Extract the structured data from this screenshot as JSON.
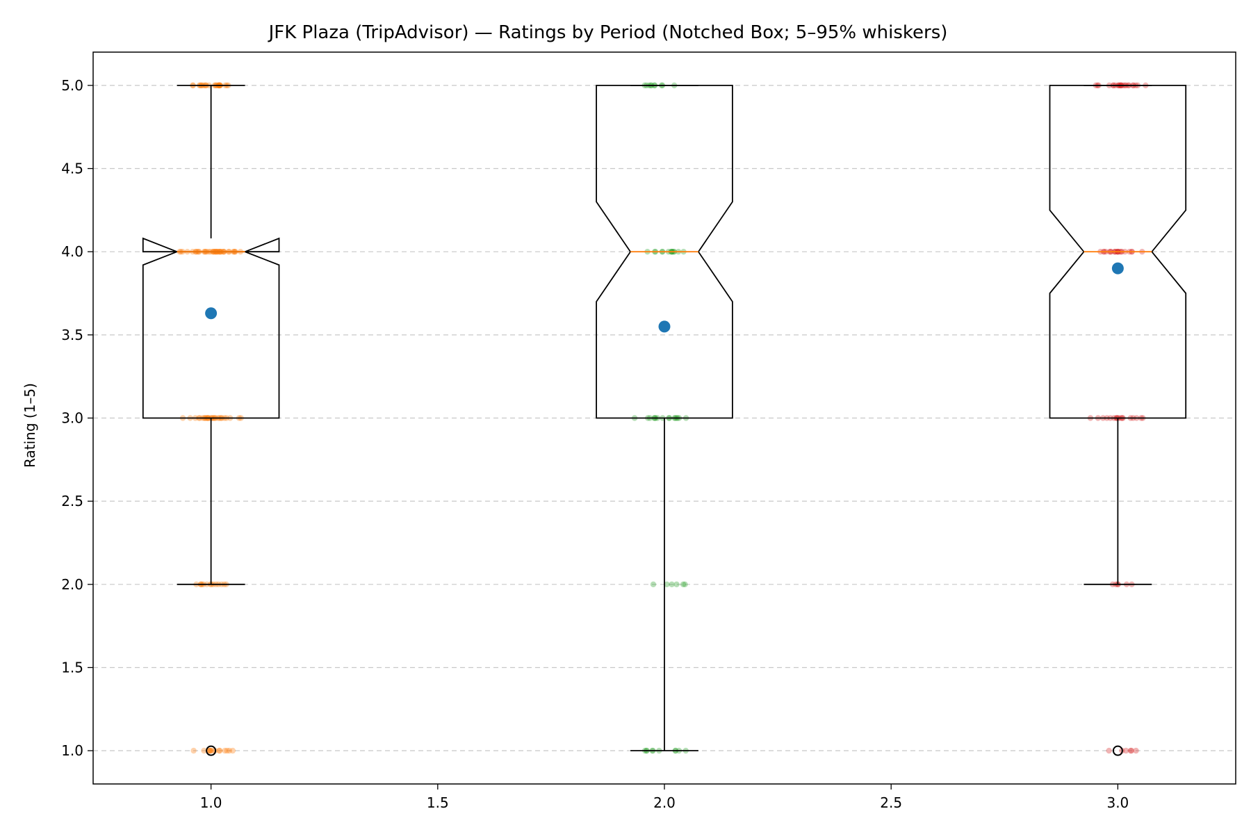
{
  "chart_data": {
    "type": "box",
    "title": "JFK Plaza (TripAdvisor) — Ratings by Period (Notched Box; 5–95% whiskers)",
    "xlabel": "",
    "ylabel": "Rating (1–5)",
    "xlim": [
      0.74,
      3.26
    ],
    "ylim": [
      0.8,
      5.2
    ],
    "x_ticks": [
      "1.0",
      "1.5",
      "2.0",
      "2.5",
      "3.0"
    ],
    "y_ticks": [
      "1.0",
      "1.5",
      "2.0",
      "2.5",
      "3.0",
      "3.5",
      "4.0",
      "4.5",
      "5.0"
    ],
    "grid": "y-dashed",
    "series": [
      {
        "position": 1.0,
        "q1": 3.0,
        "median": 4.0,
        "q3": 4.0,
        "notch_low": 3.92,
        "notch_high": 4.08,
        "whisker_low": 2.0,
        "whisker_high": 5.0,
        "mean": 3.63,
        "outliers": [
          1.0
        ],
        "point_color": "#ff7f0e",
        "points": {
          "1": 14,
          "2": 14,
          "3": 28,
          "4": 40,
          "5": 26
        }
      },
      {
        "position": 2.0,
        "q1": 3.0,
        "median": 4.0,
        "q3": 5.0,
        "notch_low": 3.7,
        "notch_high": 4.3,
        "whisker_low": 1.0,
        "whisker_high": 5.0,
        "mean": 3.55,
        "outliers": [],
        "point_color": "#2ca02c",
        "points": {
          "1": 10,
          "2": 6,
          "3": 16,
          "4": 14,
          "5": 10
        }
      },
      {
        "position": 3.0,
        "q1": 3.0,
        "median": 4.0,
        "q3": 5.0,
        "notch_low": 3.75,
        "notch_high": 4.25,
        "whisker_low": 2.0,
        "whisker_high": 5.0,
        "mean": 3.9,
        "outliers": [
          1.0
        ],
        "point_color": "#d62728",
        "points": {
          "1": 6,
          "2": 6,
          "3": 18,
          "4": 22,
          "5": 24
        }
      }
    ],
    "mean_color": "#1f77b4"
  }
}
